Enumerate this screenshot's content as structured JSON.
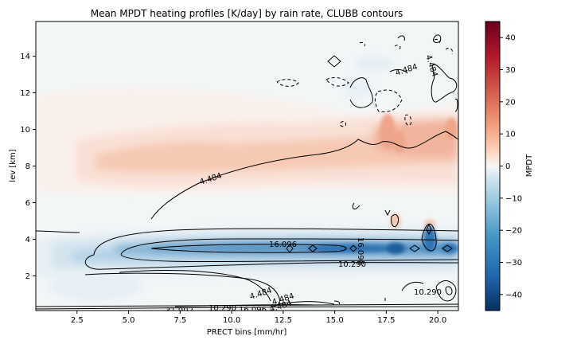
{
  "chart_data": {
    "type": "contourf",
    "title": "Mean MPDT heating profiles [K/day] by rain rate, CLUBB contours",
    "xlabel": "PRECT bins [mm/hr]",
    "ylabel": "lev [km]",
    "xlim": [
      0.5,
      21.0
    ],
    "ylim": [
      0.1,
      15.9
    ],
    "xticks": [
      "2.5",
      "5.0",
      "7.5",
      "10.0",
      "12.5",
      "15.0",
      "17.5",
      "20.0"
    ],
    "yticks": [
      "2",
      "4",
      "6",
      "8",
      "10",
      "12",
      "14"
    ],
    "colorbar": {
      "label": "MPDT",
      "range": [
        -45,
        45
      ],
      "ticks": [
        "−40",
        "−30",
        "−20",
        "−10",
        "0",
        "10",
        "20",
        "30",
        "40"
      ],
      "colormap": "RdBu_r"
    },
    "filled_field": [
      {
        "feature": "upper heating band",
        "peak_value": 10,
        "x_range": [
          3.5,
          21.0
        ],
        "y_range": [
          6.5,
          9.5
        ]
      },
      {
        "feature": "heating peaks",
        "peak_value": 15,
        "x": [
          17.5,
          18.0,
          20.3
        ],
        "y": [
          9.2,
          9.5,
          9.5
        ]
      },
      {
        "feature": "melting-level cooling band",
        "peak_value": -20,
        "x_range": [
          1.0,
          21.0
        ],
        "y_range": [
          3.0,
          4.0
        ]
      },
      {
        "feature": "cooling minimum",
        "peak_value": -25,
        "x": 17.5,
        "y": 3.5
      }
    ],
    "contour_labels": [
      "4.484",
      "4.484",
      "4.484",
      "16.096",
      "16.096",
      "10.290",
      "4.484",
      "4.484",
      "4.484",
      "31.902",
      "10.290",
      "16.096",
      "4.484",
      "10.290",
      "4.484"
    ]
  }
}
